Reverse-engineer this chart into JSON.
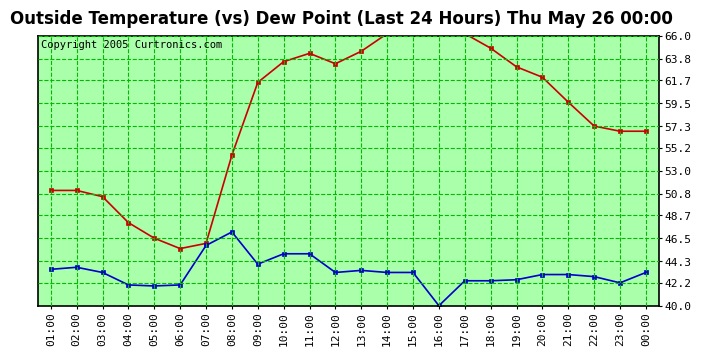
{
  "title": "Outside Temperature (vs) Dew Point (Last 24 Hours) Thu May 26 00:00",
  "copyright": "Copyright 2005 Curtronics.com",
  "x_labels": [
    "01:00",
    "02:00",
    "03:00",
    "04:00",
    "05:00",
    "06:00",
    "07:00",
    "08:00",
    "09:00",
    "10:00",
    "11:00",
    "12:00",
    "13:00",
    "14:00",
    "15:00",
    "16:00",
    "17:00",
    "18:00",
    "19:00",
    "20:00",
    "21:00",
    "22:00",
    "23:00",
    "00:00"
  ],
  "temp_values": [
    51.1,
    51.1,
    50.5,
    48.0,
    46.5,
    45.5,
    46.0,
    54.5,
    61.5,
    63.5,
    64.3,
    63.3,
    64.5,
    66.2,
    66.2,
    66.2,
    66.2,
    64.8,
    63.0,
    62.0,
    59.6,
    57.3,
    56.8,
    56.8
  ],
  "dew_values": [
    43.5,
    43.7,
    43.2,
    42.0,
    41.9,
    42.0,
    45.8,
    47.1,
    44.0,
    45.0,
    45.0,
    43.2,
    43.4,
    43.2,
    43.2,
    40.0,
    42.4,
    42.4,
    42.5,
    43.0,
    43.0,
    42.8,
    42.2,
    43.2
  ],
  "temp_color": "#cc0000",
  "dew_color": "#0000cc",
  "fig_bg_color": "#ffffff",
  "plot_bg": "#aaffaa",
  "grid_color": "#00bb00",
  "border_color": "#000000",
  "title_color": "#000000",
  "ylim": [
    40.0,
    66.0
  ],
  "yticks": [
    40.0,
    42.2,
    44.3,
    46.5,
    48.7,
    50.8,
    53.0,
    55.2,
    57.3,
    59.5,
    61.7,
    63.8,
    66.0
  ],
  "title_fontsize": 12,
  "copyright_fontsize": 7.5,
  "tick_fontsize": 8,
  "markersize": 3,
  "linewidth": 1.2
}
